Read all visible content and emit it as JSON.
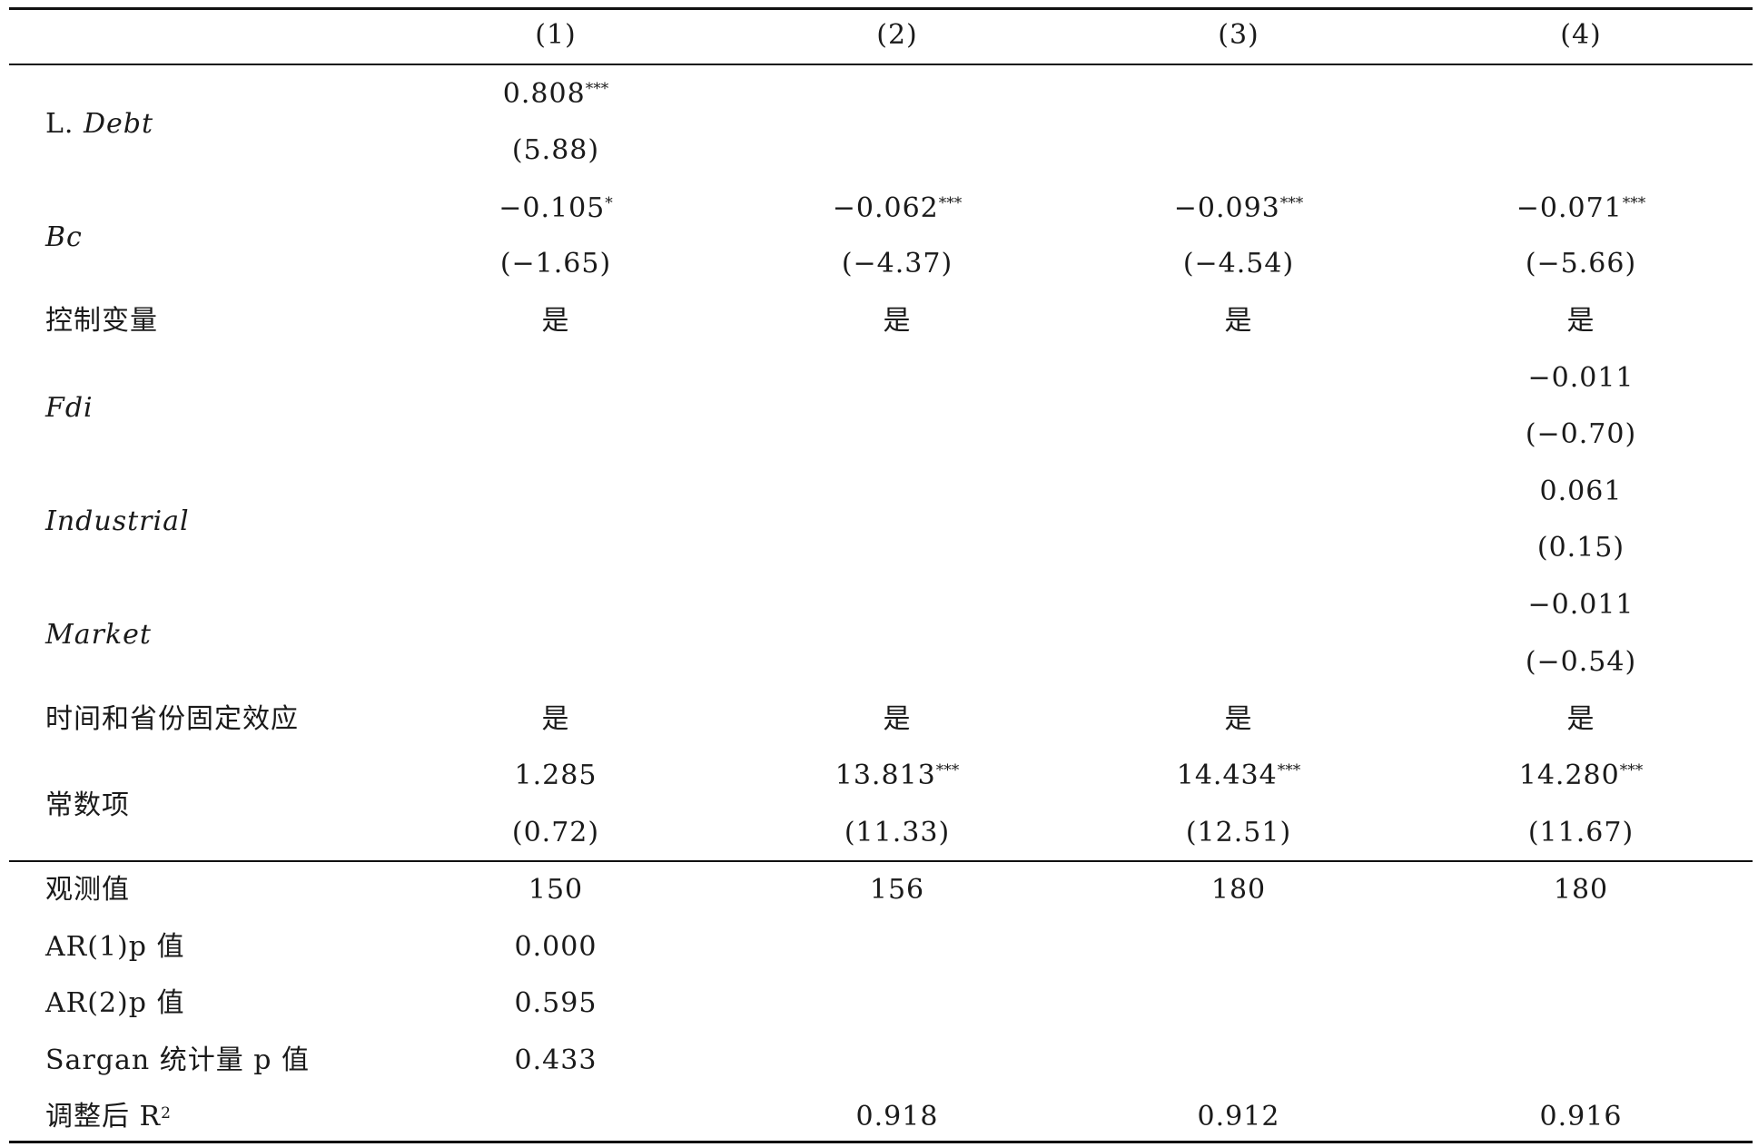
{
  "header": [
    "(1)",
    "(2)",
    "(3)",
    "(4)"
  ],
  "rows": [
    {
      "id": "ldebt",
      "label_prefix": "L. ",
      "label": "Debt",
      "italic": true,
      "coef": [
        "0.808",
        "",
        "",
        ""
      ],
      "stars": [
        "***",
        "",
        "",
        ""
      ],
      "t": [
        "(5.88)",
        "",
        "",
        ""
      ]
    },
    {
      "id": "bc",
      "label": "Bc",
      "italic": true,
      "coef": [
        "−0.105",
        "−0.062",
        "−0.093",
        "−0.071"
      ],
      "stars": [
        "*",
        "***",
        "***",
        "***"
      ],
      "t": [
        "(−1.65)",
        "(−4.37)",
        "(−4.54)",
        "(−5.66)"
      ]
    },
    {
      "id": "controls",
      "label": "控制变量",
      "italic": false,
      "single": [
        "是",
        "是",
        "是",
        "是"
      ]
    },
    {
      "id": "fdi",
      "label": "Fdi",
      "italic": true,
      "coef": [
        "",
        "",
        "",
        "−0.011"
      ],
      "stars": [
        "",
        "",
        "",
        ""
      ],
      "t": [
        "",
        "",
        "",
        "(−0.70)"
      ]
    },
    {
      "id": "industrial",
      "label": "Industrial",
      "italic": true,
      "coef": [
        "",
        "",
        "",
        "0.061"
      ],
      "stars": [
        "",
        "",
        "",
        ""
      ],
      "t": [
        "",
        "",
        "",
        "(0.15)"
      ]
    },
    {
      "id": "market",
      "label": "Market",
      "italic": true,
      "coef": [
        "",
        "",
        "",
        "−0.011"
      ],
      "stars": [
        "",
        "",
        "",
        ""
      ],
      "t": [
        "",
        "",
        "",
        "(−0.54)"
      ]
    },
    {
      "id": "fe",
      "label": "时间和省份固定效应",
      "italic": false,
      "single": [
        "是",
        "是",
        "是",
        "是"
      ]
    },
    {
      "id": "const",
      "label": "常数项",
      "italic": false,
      "coef": [
        "1.285",
        "13.813",
        "14.434",
        "14.280"
      ],
      "stars": [
        "",
        "***",
        "***",
        "***"
      ],
      "t": [
        "(0.72)",
        "(11.33)",
        "(12.51)",
        "(11.67)"
      ]
    }
  ],
  "stats": [
    {
      "id": "obs",
      "label": "观测值",
      "values": [
        "150",
        "156",
        "180",
        "180"
      ]
    },
    {
      "id": "ar1",
      "label": "AR(1)p 值",
      "values": [
        "0.000",
        "",
        "",
        ""
      ]
    },
    {
      "id": "ar2",
      "label": "AR(2)p 值",
      "values": [
        "0.595",
        "",
        "",
        ""
      ]
    },
    {
      "id": "sargan",
      "label": "Sargan 统计量 p 值",
      "values": [
        "0.433",
        "",
        "",
        ""
      ]
    },
    {
      "id": "r2",
      "label": "调整后 R",
      "label_sup": "2",
      "values": [
        "",
        "0.918",
        "0.912",
        "0.916"
      ]
    }
  ]
}
